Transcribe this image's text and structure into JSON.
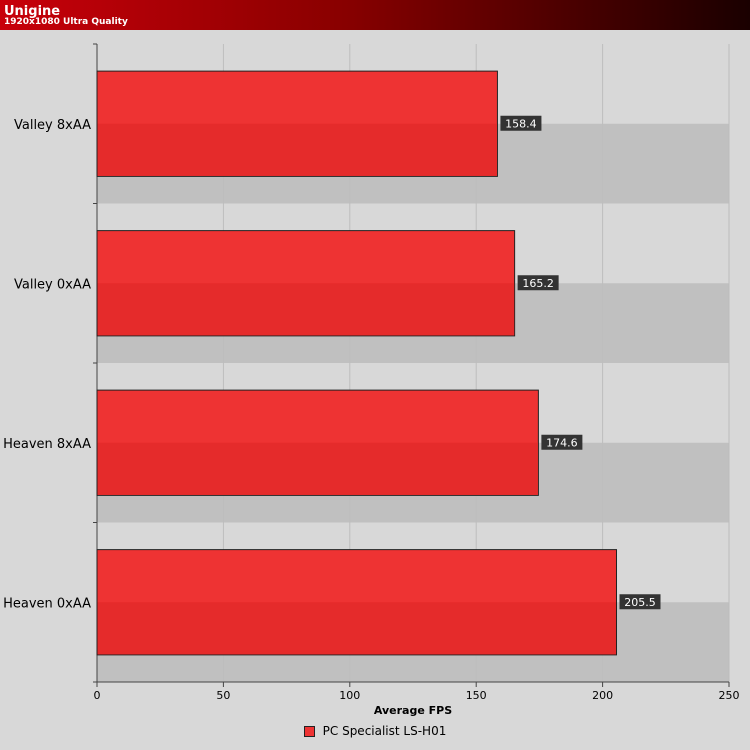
{
  "header": {
    "title": "Unigine",
    "subtitle": "1920x1080 Ultra Quality"
  },
  "colors": {
    "bar": "#ee3333",
    "bar_dark": "#e52b2b",
    "band": "#c0c0c0",
    "plot_bg": "#d8d8d8",
    "label_bg": "#333333"
  },
  "chart_data": {
    "type": "bar",
    "orientation": "horizontal",
    "title": "Unigine",
    "subtitle": "1920x1080 Ultra Quality",
    "categories": [
      "Valley 8xAA",
      "Valley 0xAA",
      "Heaven 8xAA",
      "Heaven 0xAA"
    ],
    "series": [
      {
        "name": "PC Specialist LS-H01",
        "values": [
          158.4,
          165.2,
          174.6,
          205.5
        ],
        "labels": [
          "158.4",
          "165.2",
          "174.6",
          "205.5"
        ]
      }
    ],
    "xlabel": "Average FPS",
    "ylabel": "",
    "xlim": [
      0,
      250
    ],
    "xticks": [
      0,
      50,
      100,
      150,
      200,
      250
    ],
    "grid": true,
    "legend": "bottom-center"
  }
}
